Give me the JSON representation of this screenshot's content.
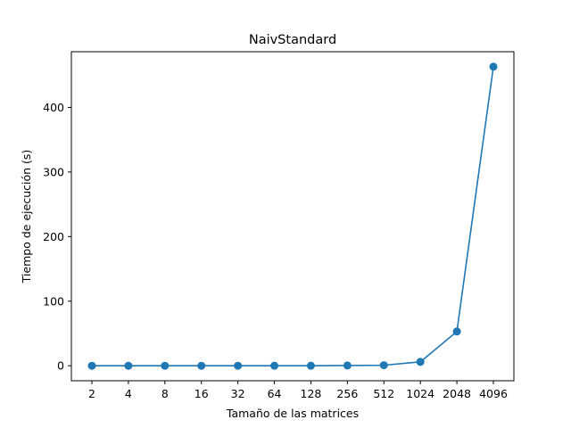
{
  "chart_data": {
    "type": "line",
    "title": "NaivStandard",
    "xlabel": "Tamaño de las matrices",
    "ylabel": "Tiempo de ejecución (s)",
    "categories": [
      "2",
      "4",
      "8",
      "16",
      "32",
      "64",
      "128",
      "256",
      "512",
      "1024",
      "2048",
      "4096"
    ],
    "series": [
      {
        "values": [
          0.0,
          0.0,
          0.0,
          0.0,
          0.0,
          0.01,
          0.05,
          0.4,
          0.8,
          6.0,
          53.0,
          463.0
        ],
        "color": "#1f77b4",
        "marker": "circle"
      }
    ],
    "yticks": [
      0,
      100,
      200,
      300,
      400
    ],
    "ylim": [
      -23.2,
      486.2
    ],
    "grid": false,
    "legend": "none"
  }
}
